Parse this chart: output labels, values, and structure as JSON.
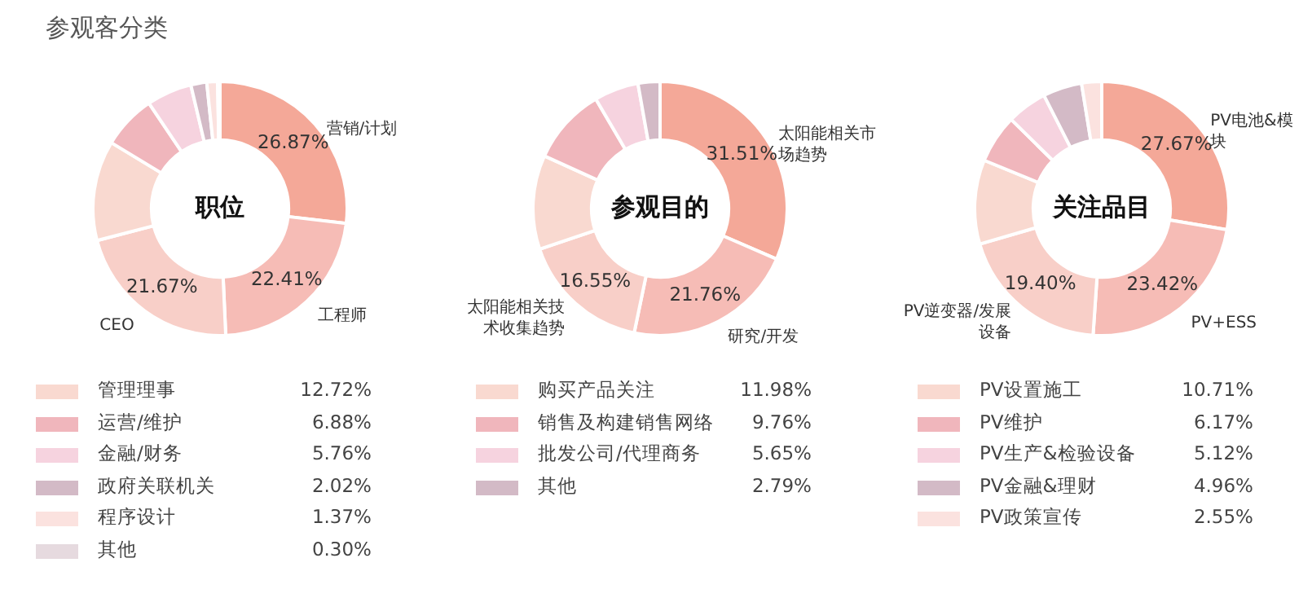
{
  "chart_data": [
    {
      "type": "donut",
      "title": "职位",
      "annotations": [
        "参观客分类"
      ],
      "legend": "bottom",
      "categories": [
        "营销/计划",
        "工程师",
        "CEO",
        "管理理事",
        "运营/维护",
        "金融/财务",
        "政府关联机关",
        "程序设计",
        "其他"
      ],
      "values": [
        26.87,
        22.41,
        21.67,
        12.72,
        6.88,
        5.76,
        2.02,
        1.37,
        0.3
      ],
      "value_labels": [
        "26.87%",
        "22.41%",
        "21.67%",
        "12.72%",
        "6.88%",
        "5.76%",
        "2.02%",
        "1.37%",
        "0.30%"
      ],
      "colors": [
        "#f4a898",
        "#f6bcb6",
        "#f8cfc8",
        "#f9d9d0",
        "#f0b6bc",
        "#f6d3df",
        "#d3bac6",
        "#fbe2df",
        "#e6dadf"
      ]
    },
    {
      "type": "donut",
      "title": "参观目的",
      "legend": "bottom",
      "categories": [
        "太阳能相关市场趋势",
        "研究/开发",
        "太阳能相关技术收集趋势",
        "购买产品关注",
        "销售及构建销售网络",
        "批发公司/代理商务",
        "其他"
      ],
      "values": [
        31.51,
        21.76,
        16.55,
        11.98,
        9.76,
        5.65,
        2.79
      ],
      "value_labels": [
        "31.51%",
        "21.76%",
        "16.55%",
        "11.98%",
        "9.76%",
        "5.65%",
        "2.79%"
      ],
      "colors": [
        "#f4a898",
        "#f6bcb6",
        "#f8cfc8",
        "#f9d9d0",
        "#f0b6bc",
        "#f6d3df",
        "#d3bac6"
      ]
    },
    {
      "type": "donut",
      "title": "关注品目",
      "legend": "bottom",
      "categories": [
        "PV电池&模块",
        "PV+ESS",
        "PV逆变器/发展设备",
        "PV设置施工",
        "PV维护",
        "PV生产&检验设备",
        "PV金融&理财",
        "PV政策宣传"
      ],
      "values": [
        27.67,
        23.42,
        19.4,
        10.71,
        6.17,
        5.12,
        4.96,
        2.55
      ],
      "value_labels": [
        "27.67%",
        "23.42%",
        "19.40%",
        "10.71%",
        "6.17%",
        "5.12%",
        "4.96%",
        "2.55%"
      ],
      "colors": [
        "#f4a898",
        "#f6bcb6",
        "#f8cfc8",
        "#f9d9d0",
        "#f0b6bc",
        "#f6d3df",
        "#d3bac6",
        "#fbe2df"
      ]
    }
  ]
}
